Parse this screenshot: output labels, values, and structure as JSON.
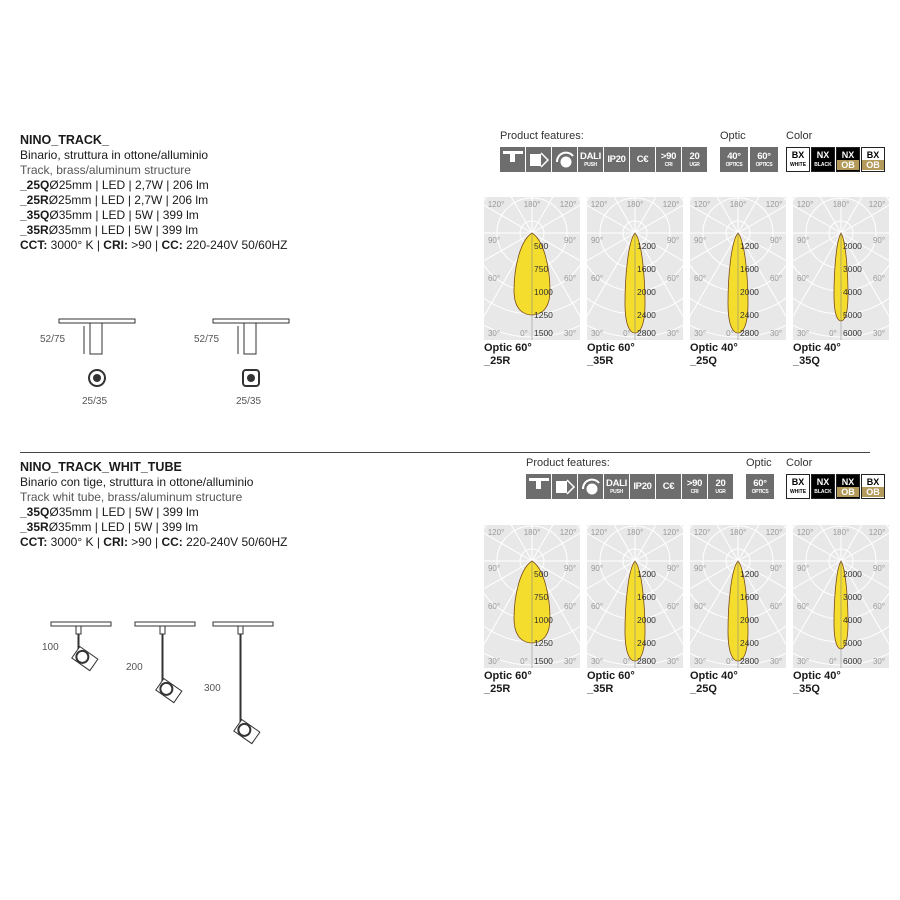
{
  "sections": [
    {
      "title": "NINO_TRACK_",
      "line_it": "Binario, struttura in ottone/alluminio",
      "line_en": "Track, brass/aluminum structure",
      "variants": [
        {
          "code": "_25Q",
          "spec": "Ø25mm | LED | 2,7W | 206 lm"
        },
        {
          "code": "_25R",
          "spec": "Ø25mm | LED | 2,7W | 206 lm"
        },
        {
          "code": "_35Q",
          "spec": "Ø35mm | LED | 5W | 399 lm"
        },
        {
          "code": "_35R",
          "spec": "Ø35mm | LED | 5W | 399 lm"
        }
      ],
      "features_label": "Product features:",
      "optic_label": "Optic",
      "color_label": "Color",
      "optics": [
        {
          "top": "40°",
          "bottom": "OPTICS"
        },
        {
          "top": "60°",
          "bottom": "OPTICS"
        }
      ],
      "dims": {
        "height": "52/75",
        "diameter": "25/35"
      }
    },
    {
      "title": "NINO_TRACK_WHIT_TUBE",
      "line_it": "Binario con tige, struttura in ottone/alluminio",
      "line_en": "Track whit tube, brass/aluminum structure",
      "variants": [
        {
          "code": "_35Q",
          "spec": "Ø35mm | LED | 5W | 399 lm"
        },
        {
          "code": "_35R",
          "spec": "Ø35mm | LED | 5W | 399 lm"
        }
      ],
      "features_label": "Product features:",
      "optic_label": "Optic",
      "color_label": "Color",
      "optics": [
        {
          "top": "60°",
          "bottom": "OPTICS"
        }
      ],
      "dims": {
        "lengths": [
          "100",
          "200",
          "300"
        ]
      }
    }
  ],
  "specs": {
    "cct_label": "CCT:",
    "cct": " 3000° K | ",
    "cri_label": "CRI:",
    "cri": " >90 | ",
    "cc_label": "CC:",
    "cc": " 220-240V 50/60HZ"
  },
  "features": [
    {
      "top": "",
      "bottom": "",
      "icon": "track-mount-icon"
    },
    {
      "top": "",
      "bottom": "",
      "icon": "adjustable-icon"
    },
    {
      "top": "",
      "bottom": "",
      "icon": "rotation-icon"
    },
    {
      "top": "DALI",
      "bottom": "PUSH"
    },
    {
      "top": "IP20",
      "bottom": ""
    },
    {
      "top": "C€",
      "bottom": ""
    },
    {
      "top": ">90",
      "bottom": "CRI"
    },
    {
      "top": "20",
      "bottom": "UGR"
    }
  ],
  "colors": [
    {
      "top": "BX",
      "bottom": "WHITE",
      "bg": "#ffffff",
      "fg": "#000000",
      "bot_bg": "#ffffff",
      "bot_fg": "#000000"
    },
    {
      "top": "NX",
      "bottom": "BLACK",
      "bg": "#000000",
      "fg": "#ffffff",
      "bot_bg": "#000000",
      "bot_fg": "#ffffff"
    },
    {
      "top": "NX",
      "bottom": "OB",
      "bg": "#000000",
      "fg": "#ffffff",
      "bot_bg": "#b49a5a",
      "bot_fg": "#ffffff"
    },
    {
      "top": "BX",
      "bottom": "OB",
      "bg": "#ffffff",
      "fg": "#000000",
      "bot_bg": "#b49a5a",
      "bot_fg": "#ffffff"
    }
  ],
  "angle_labels": {
    "top_left": "120°",
    "top": "180°",
    "top_right": "120°",
    "mid_left": "90°",
    "mid_right": "90°",
    "low_left": "60°",
    "low_right": "60°",
    "bottom_left": "30°",
    "bottom": "0°",
    "bottom_right": "30°"
  },
  "photometry": [
    {
      "caption": "Optic 60°",
      "code": "_25R",
      "values": [
        "500",
        "750",
        "1000",
        "1250",
        "1500"
      ],
      "lobe_width": "wide"
    },
    {
      "caption": "Optic 60°",
      "code": "_35R",
      "values": [
        "1200",
        "1600",
        "2000",
        "2400",
        "2800"
      ],
      "lobe_width": "medium"
    },
    {
      "caption": "Optic 40°",
      "code": "_25Q",
      "values": [
        "1200",
        "1600",
        "2000",
        "2400",
        "2800"
      ],
      "lobe_width": "medium"
    },
    {
      "caption": "Optic 40°",
      "code": "_35Q",
      "values": [
        "2000",
        "3000",
        "4000",
        "5000",
        "6000"
      ],
      "lobe_width": "narrow"
    }
  ],
  "lobe_color": "#f5dd2e"
}
